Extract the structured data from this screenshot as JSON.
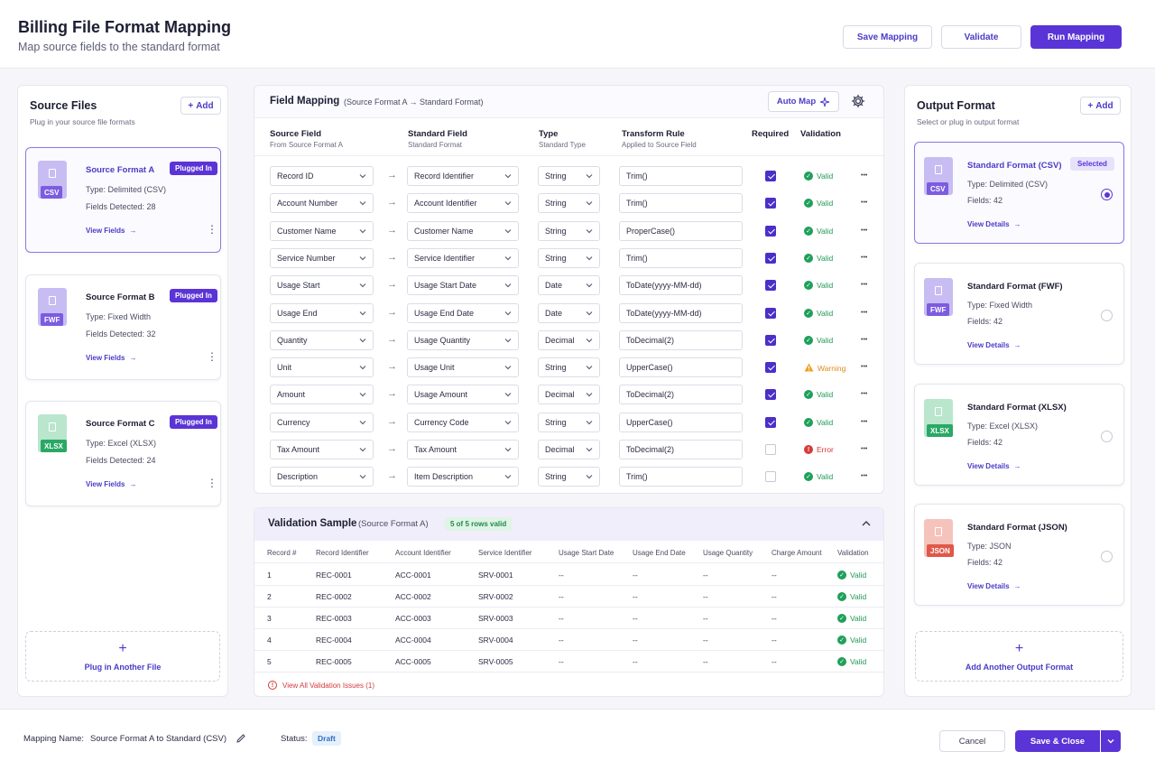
{
  "header": {
    "title": "Billing File Format Mapping",
    "subtitle": "Map source fields to the standard format",
    "save_mapping": "Save Mapping",
    "validate": "Validate",
    "run_mapping": "Run Mapping"
  },
  "source": {
    "title": "Source Files",
    "subtitle": "Plug in your source file formats",
    "add": "Add",
    "plug_another": "Plug in Another File",
    "files": [
      {
        "badge": "CSV",
        "name": "Source Format A",
        "status": "Plugged In",
        "type": "Type: Delimited (CSV)",
        "fields": "Fields Detected: 28",
        "link": "View Fields",
        "color": "#7c5ce0",
        "sheet": "#c8bdf2"
      },
      {
        "badge": "FWF",
        "name": "Source Format B",
        "status": "Plugged In",
        "type": "Type: Fixed Width",
        "fields": "Fields Detected: 32",
        "link": "View Fields",
        "color": "#7c5ce0",
        "sheet": "#c8bdf2"
      },
      {
        "badge": "XLSX",
        "name": "Source Format C",
        "status": "Plugged In",
        "type": "Type: Excel (XLSX)",
        "fields": "Fields Detected: 24",
        "link": "View Fields",
        "color": "#2aa866",
        "sheet": "#b9e6cd"
      }
    ]
  },
  "mapping": {
    "title": "Field Mapping",
    "subtitle": "(Source Format A → Standard Format)",
    "auto_map": "Auto Map",
    "columns": {
      "source": "Source Field",
      "source_sub": "From Source Format A",
      "standard": "Standard Field",
      "standard_sub": "Standard Format",
      "type": "Type",
      "type_sub": "Standard Type",
      "transform": "Transform Rule",
      "transform_sub": "Applied to Source Field",
      "required": "Required",
      "validation": "Validation"
    },
    "rows": [
      {
        "source": "Record ID",
        "standard": "Record Identifier",
        "type": "String",
        "rule": "Trim()",
        "required": true,
        "status": "Valid",
        "kind": "valid"
      },
      {
        "source": "Account Number",
        "standard": "Account Identifier",
        "type": "String",
        "rule": "Trim()",
        "required": true,
        "status": "Valid",
        "kind": "valid"
      },
      {
        "source": "Customer Name",
        "standard": "Customer Name",
        "type": "String",
        "rule": "ProperCase()",
        "required": true,
        "status": "Valid",
        "kind": "valid"
      },
      {
        "source": "Service Number",
        "standard": "Service Identifier",
        "type": "String",
        "rule": "Trim()",
        "required": true,
        "status": "Valid",
        "kind": "valid"
      },
      {
        "source": "Usage Start",
        "standard": "Usage Start Date",
        "type": "Date",
        "rule": "ToDate(yyyy-MM-dd)",
        "required": true,
        "status": "Valid",
        "kind": "valid"
      },
      {
        "source": "Usage End",
        "standard": "Usage End Date",
        "type": "Date",
        "rule": "ToDate(yyyy-MM-dd)",
        "required": true,
        "status": "Valid",
        "kind": "valid"
      },
      {
        "source": "Quantity",
        "standard": "Usage Quantity",
        "type": "Decimal",
        "rule": "ToDecimal(2)",
        "required": true,
        "status": "Valid",
        "kind": "valid"
      },
      {
        "source": "Unit",
        "standard": "Usage Unit",
        "type": "String",
        "rule": "UpperCase()",
        "required": true,
        "status": "Warning",
        "kind": "warning"
      },
      {
        "source": "Amount",
        "standard": "Usage Amount",
        "type": "Decimal",
        "rule": "ToDecimal(2)",
        "required": true,
        "status": "Valid",
        "kind": "valid"
      },
      {
        "source": "Currency",
        "standard": "Currency Code",
        "type": "String",
        "rule": "UpperCase()",
        "required": true,
        "status": "Valid",
        "kind": "valid"
      },
      {
        "source": "Tax Amount",
        "standard": "Tax Amount",
        "type": "Decimal",
        "rule": "ToDecimal(2)",
        "required": false,
        "status": "Error",
        "kind": "error"
      },
      {
        "source": "Description",
        "standard": "Item Description",
        "type": "String",
        "rule": "Trim()",
        "required": false,
        "status": "Valid",
        "kind": "valid"
      }
    ]
  },
  "validation": {
    "title": "Validation Sample",
    "subtitle": "(Source Format A)",
    "badge": "5 of 5 rows valid",
    "headers": [
      "Record #",
      "Record Identifier",
      "Account Identifier",
      "Service Identifier",
      "Usage Start Date",
      "Usage End Date",
      "Usage Quantity",
      "Charge Amount",
      "Validation"
    ],
    "rows": [
      [
        "1",
        "REC-0001",
        "ACC-0001",
        "SRV-0001",
        "--",
        "--",
        "--",
        "--",
        "Valid"
      ],
      [
        "2",
        "REC-0002",
        "ACC-0002",
        "SRV-0002",
        "--",
        "--",
        "--",
        "--",
        "Valid"
      ],
      [
        "3",
        "REC-0003",
        "ACC-0003",
        "SRV-0003",
        "--",
        "--",
        "--",
        "--",
        "Valid"
      ],
      [
        "4",
        "REC-0004",
        "ACC-0004",
        "SRV-0004",
        "--",
        "--",
        "--",
        "--",
        "Valid"
      ],
      [
        "5",
        "REC-0005",
        "ACC-0005",
        "SRV-0005",
        "--",
        "--",
        "--",
        "--",
        "Valid"
      ]
    ],
    "issues_link": "View All Validation Issues (1)"
  },
  "output": {
    "title": "Output Format",
    "subtitle": "Select or plug in output format",
    "add": "Add",
    "add_another": "Add Another Output Format",
    "formats": [
      {
        "badge": "CSV",
        "name": "Standard Format (CSV)",
        "type": "Type: Delimited (CSV)",
        "fields": "Fields: 42",
        "link": "View Details",
        "selected": true,
        "selected_label": "Selected",
        "color": "#7c5ce0",
        "sheet": "#c8bdf2"
      },
      {
        "badge": "FWF",
        "name": "Standard Format (FWF)",
        "type": "Type: Fixed Width",
        "fields": "Fields: 42",
        "link": "View Details",
        "selected": false,
        "color": "#7c5ce0",
        "sheet": "#c8bdf2"
      },
      {
        "badge": "XLSX",
        "name": "Standard Format (XLSX)",
        "type": "Type: Excel (XLSX)",
        "fields": "Fields: 42",
        "link": "View Details",
        "selected": false,
        "color": "#2aa866",
        "sheet": "#b9e6cd"
      },
      {
        "badge": "JSON",
        "name": "Standard Format (JSON)",
        "type": "Type: JSON",
        "fields": "Fields: 42",
        "link": "View Details",
        "selected": false,
        "color": "#e0584a",
        "sheet": "#f5c3bc"
      }
    ]
  },
  "footer": {
    "mapping_name_label": "Mapping Name:",
    "mapping_name": "Source Format A to Standard (CSV)",
    "status_label": "Status:",
    "status": "Draft",
    "cancel": "Cancel",
    "save_close": "Save & Close"
  },
  "colors": {
    "accent": "#5a34d6",
    "valid": "#1fa05a",
    "warning": "#f0a020",
    "error": "#d63a3a"
  }
}
